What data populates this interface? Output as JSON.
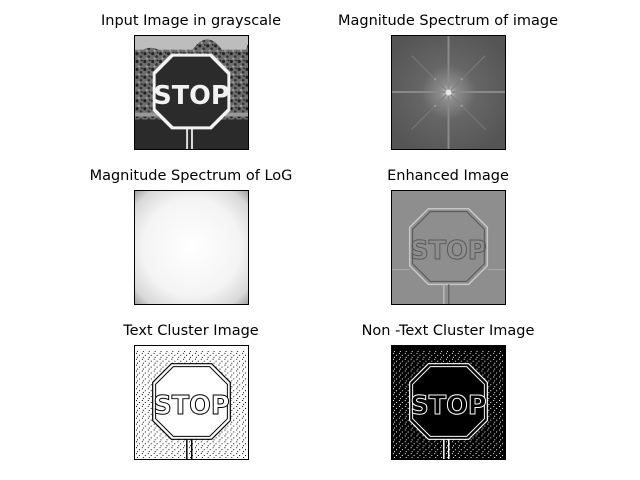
{
  "figure": {
    "panels": [
      {
        "id": "input",
        "title": "Input Image in grayscale",
        "sign_text": "STOP"
      },
      {
        "id": "magnitude",
        "title": "Magnitude Spectrum of image"
      },
      {
        "id": "log",
        "title": "Magnitude Spectrum of LoG"
      },
      {
        "id": "enhanced",
        "title": "Enhanced Image",
        "sign_text": "STOP"
      },
      {
        "id": "text_cluster",
        "title": "Text Cluster Image",
        "sign_text": "STOP"
      },
      {
        "id": "non_text_cluster",
        "title": "Non -Text Cluster Image",
        "sign_text": "STOP"
      }
    ]
  }
}
